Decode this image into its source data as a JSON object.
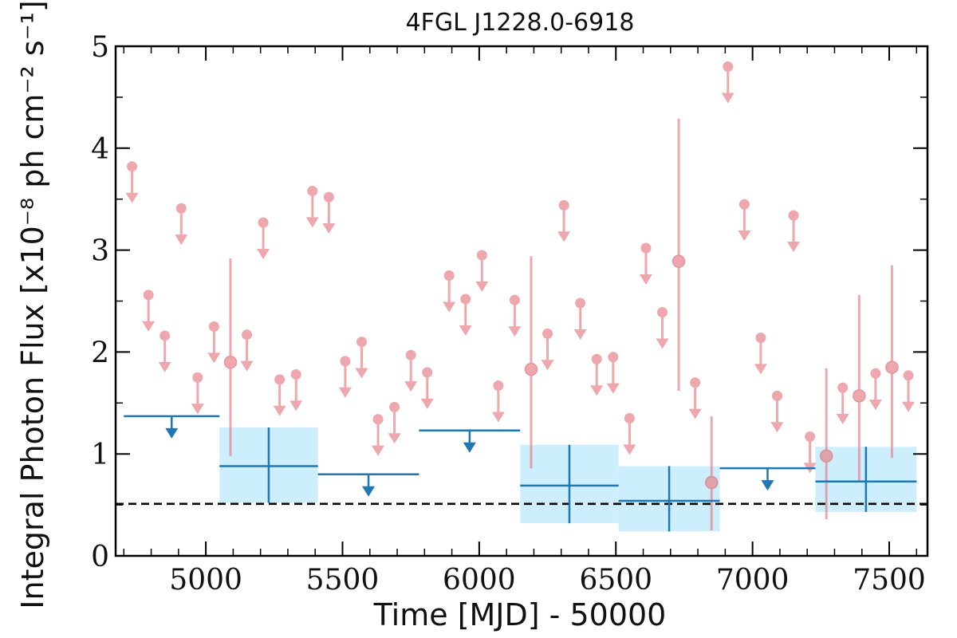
{
  "chart_data": {
    "type": "scatter",
    "title": "4FGL J1228.0-6918",
    "xlabel": "Time [MJD] - 50000",
    "ylabel": "Integral Photon Flux [x10⁻⁸ ph cm⁻² s⁻¹]",
    "xlim": [
      4670,
      7640
    ],
    "ylim": [
      0,
      5
    ],
    "x_ticks": [
      5000,
      5500,
      6000,
      6500,
      7000,
      7500
    ],
    "y_ticks": [
      0,
      1,
      2,
      3,
      4,
      5
    ],
    "x_tick_labels": [
      "5000",
      "5500",
      "6000",
      "6500",
      "7000",
      "7500"
    ],
    "y_tick_labels": [
      "0",
      "1",
      "2",
      "3",
      "4",
      "5"
    ],
    "reference_line": {
      "y": 0.51,
      "style": "dashed",
      "color": "#000000"
    },
    "colors": {
      "short_bins": "#e8838a",
      "long_bins": "#1f77b4",
      "long_bin_box": "#cdeefc"
    },
    "series": [
      {
        "kind": "short-bin-upper-limits",
        "points": [
          {
            "x": 4730,
            "y": 3.82
          },
          {
            "x": 4790,
            "y": 2.56
          },
          {
            "x": 4850,
            "y": 2.16
          },
          {
            "x": 4910,
            "y": 3.41
          },
          {
            "x": 4970,
            "y": 1.75
          },
          {
            "x": 5030,
            "y": 2.25
          },
          {
            "x": 5150,
            "y": 2.17
          },
          {
            "x": 5210,
            "y": 3.27
          },
          {
            "x": 5270,
            "y": 1.73
          },
          {
            "x": 5330,
            "y": 1.78
          },
          {
            "x": 5390,
            "y": 3.58
          },
          {
            "x": 5450,
            "y": 3.52
          },
          {
            "x": 5510,
            "y": 1.91
          },
          {
            "x": 5570,
            "y": 2.1
          },
          {
            "x": 5630,
            "y": 1.34
          },
          {
            "x": 5690,
            "y": 1.46
          },
          {
            "x": 5750,
            "y": 1.97
          },
          {
            "x": 5810,
            "y": 1.8
          },
          {
            "x": 5890,
            "y": 2.75
          },
          {
            "x": 5950,
            "y": 2.52
          },
          {
            "x": 6010,
            "y": 2.95
          },
          {
            "x": 6070,
            "y": 1.67
          },
          {
            "x": 6130,
            "y": 2.51
          },
          {
            "x": 6250,
            "y": 2.18
          },
          {
            "x": 6310,
            "y": 3.44
          },
          {
            "x": 6370,
            "y": 2.48
          },
          {
            "x": 6430,
            "y": 1.93
          },
          {
            "x": 6490,
            "y": 1.95
          },
          {
            "x": 6550,
            "y": 1.35
          },
          {
            "x": 6610,
            "y": 3.02
          },
          {
            "x": 6670,
            "y": 2.39
          },
          {
            "x": 6790,
            "y": 1.7
          },
          {
            "x": 6910,
            "y": 4.8
          },
          {
            "x": 6970,
            "y": 3.45
          },
          {
            "x": 7030,
            "y": 2.14
          },
          {
            "x": 7090,
            "y": 1.57
          },
          {
            "x": 7150,
            "y": 3.34
          },
          {
            "x": 7210,
            "y": 1.17
          },
          {
            "x": 7330,
            "y": 1.65
          },
          {
            "x": 7450,
            "y": 1.79
          },
          {
            "x": 7570,
            "y": 1.77
          }
        ]
      },
      {
        "kind": "short-bin-detections",
        "points": [
          {
            "x": 5090,
            "y": 1.9,
            "ylow": 0.98,
            "yhigh": 2.92
          },
          {
            "x": 6190,
            "y": 1.83,
            "ylow": 0.86,
            "yhigh": 2.94
          },
          {
            "x": 6730,
            "y": 2.89,
            "ylow": 1.62,
            "yhigh": 4.29
          },
          {
            "x": 6850,
            "y": 0.72,
            "ylow": 0.25,
            "yhigh": 1.37
          },
          {
            "x": 7270,
            "y": 0.98,
            "ylow": 0.36,
            "yhigh": 1.84
          },
          {
            "x": 7390,
            "y": 1.57,
            "ylow": 0.74,
            "yhigh": 2.56
          },
          {
            "x": 7510,
            "y": 1.85,
            "ylow": 0.96,
            "yhigh": 2.85
          }
        ]
      },
      {
        "kind": "long-bin-upper-limits",
        "points": [
          {
            "x0": 4700,
            "x1": 5050,
            "x": 4875,
            "y": 1.37
          },
          {
            "x0": 5410,
            "x1": 5780,
            "x": 5595,
            "y": 0.8
          },
          {
            "x0": 5780,
            "x1": 6150,
            "x": 5965,
            "y": 1.23
          },
          {
            "x0": 6880,
            "x1": 7230,
            "x": 7055,
            "y": 0.86
          }
        ]
      },
      {
        "kind": "long-bin-detections",
        "points": [
          {
            "x0": 5050,
            "x1": 5410,
            "x": 5230,
            "y": 0.88,
            "ylow": 0.52,
            "yhigh": 1.26
          },
          {
            "x0": 6150,
            "x1": 6510,
            "x": 6330,
            "y": 0.69,
            "ylow": 0.32,
            "yhigh": 1.09
          },
          {
            "x0": 6510,
            "x1": 6880,
            "x": 6695,
            "y": 0.54,
            "ylow": 0.24,
            "yhigh": 0.88
          },
          {
            "x0": 7230,
            "x1": 7600,
            "x": 7415,
            "y": 0.73,
            "ylow": 0.43,
            "yhigh": 1.07
          }
        ]
      }
    ]
  }
}
